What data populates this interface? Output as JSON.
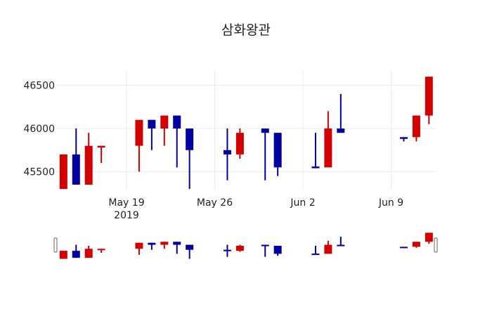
{
  "chart_data": {
    "type": "candlestick",
    "title": "삼화왕관",
    "xlabel": "",
    "ylabel": "",
    "ylim": [
      45250,
      46650
    ],
    "y_ticks": [
      45500,
      46000,
      46500
    ],
    "x_ticks": [
      {
        "date": "2019-05-19",
        "label": "May 19",
        "sublabel": "2019"
      },
      {
        "date": "2019-05-26",
        "label": "May 26",
        "sublabel": ""
      },
      {
        "date": "2019-06-02",
        "label": "Jun 2",
        "sublabel": ""
      },
      {
        "date": "2019-06-09",
        "label": "Jun 9",
        "sublabel": ""
      }
    ],
    "increasing_color": "#d40000",
    "decreasing_color": "#0000a0",
    "grid": true,
    "rangeslider": true,
    "candles": [
      {
        "date": "2019-05-14",
        "open": 45300,
        "high": 45700,
        "low": 45300,
        "close": 45700
      },
      {
        "date": "2019-05-15",
        "open": 45700,
        "high": 46000,
        "low": 45350,
        "close": 45350
      },
      {
        "date": "2019-05-16",
        "open": 45350,
        "high": 45950,
        "low": 45350,
        "close": 45800
      },
      {
        "date": "2019-05-17",
        "open": 45780,
        "high": 45800,
        "low": 45600,
        "close": 45800
      },
      {
        "date": "2019-05-20",
        "open": 45800,
        "high": 46100,
        "low": 45500,
        "close": 46100
      },
      {
        "date": "2019-05-21",
        "open": 46100,
        "high": 46100,
        "low": 45750,
        "close": 46000
      },
      {
        "date": "2019-05-22",
        "open": 46000,
        "high": 46150,
        "low": 45800,
        "close": 46150
      },
      {
        "date": "2019-05-23",
        "open": 46150,
        "high": 46150,
        "low": 45550,
        "close": 46000
      },
      {
        "date": "2019-05-24",
        "open": 46000,
        "high": 46000,
        "low": 45300,
        "close": 45750
      },
      {
        "date": "2019-05-27",
        "open": 45750,
        "high": 46000,
        "low": 45400,
        "close": 45700
      },
      {
        "date": "2019-05-28",
        "open": 45700,
        "high": 46000,
        "low": 45650,
        "close": 45950
      },
      {
        "date": "2019-05-30",
        "open": 46000,
        "high": 46000,
        "low": 45400,
        "close": 45950
      },
      {
        "date": "2019-05-31",
        "open": 45950,
        "high": 45950,
        "low": 45450,
        "close": 45550
      },
      {
        "date": "2019-06-03",
        "open": 45560,
        "high": 45950,
        "low": 45540,
        "close": 45540
      },
      {
        "date": "2019-06-04",
        "open": 45550,
        "high": 46200,
        "low": 45550,
        "close": 46000
      },
      {
        "date": "2019-06-05",
        "open": 46000,
        "high": 46400,
        "low": 45950,
        "close": 45950
      },
      {
        "date": "2019-06-10",
        "open": 45900,
        "high": 45900,
        "low": 45850,
        "close": 45880
      },
      {
        "date": "2019-06-11",
        "open": 45900,
        "high": 46150,
        "low": 45850,
        "close": 46150
      },
      {
        "date": "2019-06-12",
        "open": 46150,
        "high": 46600,
        "low": 46050,
        "close": 46600
      }
    ]
  }
}
